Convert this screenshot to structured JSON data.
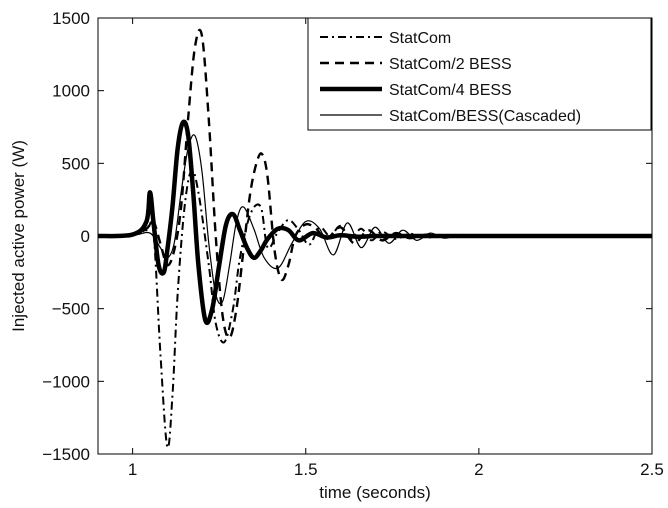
{
  "chart_data": {
    "type": "line",
    "xlabel": "time (seconds)",
    "ylabel": "Injected active power (W)",
    "xlim": [
      0.9,
      2.5
    ],
    "ylim": [
      -1500,
      1500
    ],
    "xticks": [
      1,
      1.5,
      2,
      2.5
    ],
    "yticks": [
      -1500,
      -1000,
      -500,
      0,
      500,
      1000,
      1500
    ],
    "grid": false,
    "legend_position": "top-right",
    "series": [
      {
        "name": "StatCom",
        "style": "dash-dot",
        "color": "#000000",
        "x": [
          0.9,
          1.0,
          1.04,
          1.06,
          1.08,
          1.1,
          1.115,
          1.13,
          1.15,
          1.17,
          1.19,
          1.22,
          1.24,
          1.265,
          1.29,
          1.31,
          1.34,
          1.37,
          1.39,
          1.42,
          1.45,
          1.48,
          1.51,
          1.54,
          1.57,
          1.6,
          1.63,
          1.66,
          1.69,
          1.72,
          1.76,
          1.8,
          1.85,
          1.9,
          2.0,
          2.5
        ],
        "y": [
          0,
          10,
          40,
          30,
          -800,
          -1450,
          -1100,
          -400,
          200,
          450,
          300,
          -200,
          -600,
          -730,
          -500,
          -150,
          150,
          200,
          -80,
          30,
          110,
          40,
          -60,
          60,
          0,
          70,
          -20,
          50,
          -30,
          30,
          -20,
          15,
          -10,
          5,
          0,
          0
        ]
      },
      {
        "name": "StatCom/2 BESS",
        "style": "dashed",
        "color": "#000000",
        "x": [
          0.9,
          1.0,
          1.04,
          1.06,
          1.08,
          1.1,
          1.12,
          1.14,
          1.16,
          1.18,
          1.2,
          1.22,
          1.24,
          1.26,
          1.28,
          1.3,
          1.32,
          1.34,
          1.36,
          1.375,
          1.39,
          1.41,
          1.43,
          1.45,
          1.47,
          1.5,
          1.53,
          1.56,
          1.6,
          1.64,
          1.68,
          1.72,
          1.76,
          1.8,
          1.85,
          1.9,
          2.0,
          2.5
        ],
        "y": [
          0,
          10,
          50,
          100,
          -50,
          -200,
          -100,
          200,
          800,
          1300,
          1380,
          800,
          0,
          -550,
          -700,
          -500,
          -100,
          300,
          520,
          560,
          400,
          -100,
          -300,
          -200,
          0,
          80,
          50,
          -20,
          60,
          -50,
          40,
          -30,
          20,
          -15,
          10,
          -5,
          0,
          0
        ]
      },
      {
        "name": "StatCom/4 BESS",
        "style": "thick",
        "color": "#000000",
        "x": [
          0.9,
          1.0,
          1.04,
          1.05,
          1.06,
          1.075,
          1.09,
          1.1,
          1.115,
          1.13,
          1.145,
          1.16,
          1.175,
          1.19,
          1.21,
          1.23,
          1.25,
          1.27,
          1.29,
          1.31,
          1.33,
          1.35,
          1.37,
          1.39,
          1.42,
          1.45,
          1.48,
          1.52,
          1.56,
          1.6,
          1.65,
          1.7,
          1.8,
          2.0,
          2.5
        ],
        "y": [
          0,
          10,
          100,
          300,
          100,
          -200,
          -250,
          -100,
          200,
          600,
          780,
          700,
          300,
          -200,
          -580,
          -500,
          -200,
          80,
          150,
          40,
          -80,
          -150,
          -100,
          -20,
          50,
          40,
          -30,
          20,
          -10,
          5,
          -5,
          0,
          0,
          0,
          0
        ]
      },
      {
        "name": "StatCom/BESS(Cascaded)",
        "style": "thin",
        "color": "#000000",
        "x": [
          0.9,
          1.0,
          1.05,
          1.08,
          1.1,
          1.12,
          1.14,
          1.16,
          1.18,
          1.2,
          1.22,
          1.24,
          1.26,
          1.28,
          1.3,
          1.32,
          1.35,
          1.38,
          1.42,
          1.46,
          1.5,
          1.54,
          1.58,
          1.62,
          1.66,
          1.7,
          1.74,
          1.78,
          1.82,
          1.86,
          1.9,
          1.95,
          2.0,
          2.5
        ],
        "y": [
          0,
          5,
          20,
          -80,
          -150,
          -50,
          300,
          600,
          690,
          450,
          -50,
          -400,
          -450,
          -200,
          100,
          200,
          50,
          -150,
          -220,
          -50,
          100,
          50,
          -130,
          90,
          -80,
          60,
          -50,
          40,
          -30,
          20,
          -15,
          10,
          0,
          0
        ]
      }
    ]
  }
}
